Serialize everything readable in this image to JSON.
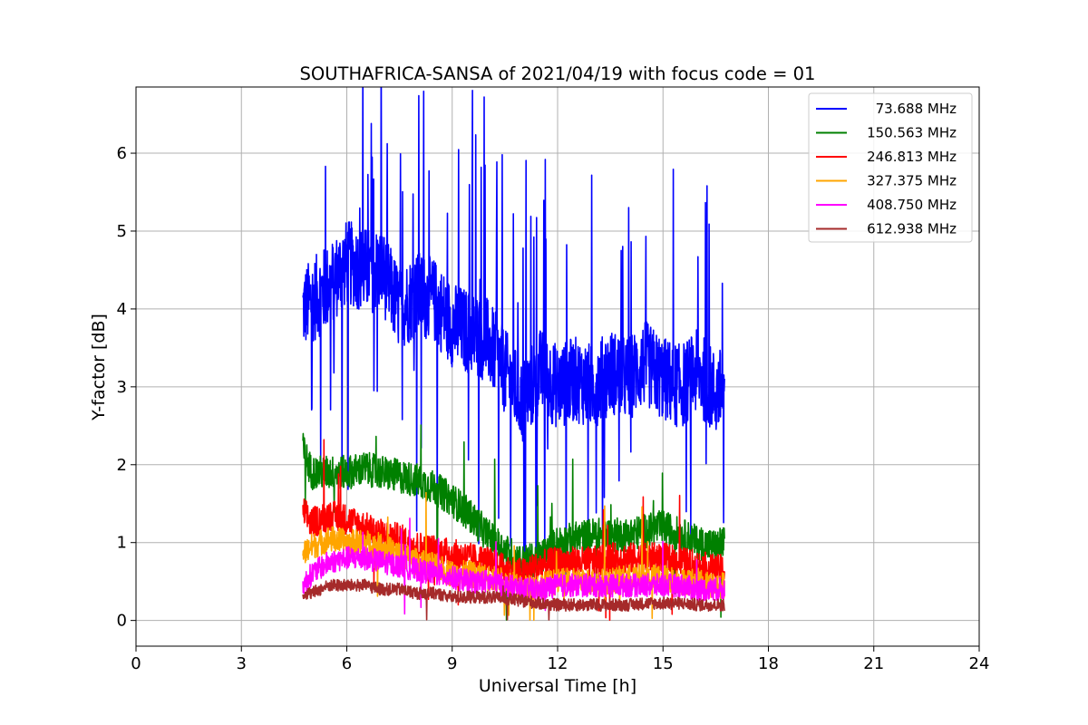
{
  "chart_data": {
    "type": "line",
    "title": "SOUTHAFRICA-SANSA of 2021/04/19 with focus code = 01",
    "xlabel": "Universal Time [h]",
    "ylabel": "Y-factor [dB]",
    "xlim": [
      0,
      24
    ],
    "ylim": [
      -0.33,
      6.85
    ],
    "xticks": [
      0,
      3,
      6,
      9,
      12,
      15,
      18,
      21,
      24
    ],
    "yticks": [
      0,
      1,
      2,
      3,
      4,
      5,
      6
    ],
    "grid": true,
    "legend_position": "top-right",
    "x_range_of_data": [
      4.75,
      16.75
    ],
    "series": [
      {
        "name": " 73.688 MHz",
        "color": "#0000ff",
        "x": [
          4.75,
          5,
          5.5,
          6,
          6.5,
          7,
          7.5,
          8,
          8.5,
          9,
          9.5,
          10,
          10.5,
          11,
          11.5,
          12,
          12.5,
          13,
          13.5,
          14,
          14.5,
          15,
          15.5,
          16,
          16.5,
          16.75
        ],
        "values": [
          4.0,
          4.1,
          4.3,
          4.6,
          4.5,
          4.5,
          4.0,
          4.2,
          4.1,
          3.8,
          3.7,
          3.6,
          3.2,
          2.8,
          3.2,
          3.0,
          3.1,
          3.0,
          3.2,
          3.1,
          3.3,
          3.1,
          3.0,
          3.2,
          2.9,
          3.0
        ]
      },
      {
        "name": "150.563 MHz",
        "color": "#008000",
        "x": [
          4.75,
          5,
          5.5,
          6,
          6.5,
          7,
          7.5,
          8,
          8.5,
          9,
          9.5,
          10,
          10.5,
          11,
          11.5,
          12,
          12.5,
          13,
          13.5,
          14,
          14.5,
          15,
          15.5,
          16,
          16.5,
          16.75
        ],
        "values": [
          2.2,
          1.9,
          1.9,
          1.9,
          1.95,
          1.9,
          1.85,
          1.8,
          1.7,
          1.55,
          1.35,
          1.1,
          0.9,
          0.75,
          0.8,
          1.0,
          1.05,
          1.1,
          1.1,
          1.1,
          1.15,
          1.2,
          1.1,
          1.0,
          0.95,
          1.0
        ]
      },
      {
        "name": "246.813 MHz",
        "color": "#ff0000",
        "x": [
          4.75,
          5,
          5.5,
          6,
          6.5,
          7,
          7.5,
          8,
          8.5,
          9,
          9.5,
          10,
          10.5,
          11,
          11.5,
          12,
          12.5,
          13,
          13.5,
          14,
          14.5,
          15,
          15.5,
          16,
          16.5,
          16.75
        ],
        "values": [
          1.4,
          1.25,
          1.35,
          1.3,
          1.2,
          1.1,
          1.05,
          0.95,
          0.9,
          0.85,
          0.8,
          0.75,
          0.65,
          0.6,
          0.7,
          0.75,
          0.75,
          0.75,
          0.8,
          0.8,
          0.8,
          0.8,
          0.75,
          0.7,
          0.65,
          0.65
        ]
      },
      {
        "name": "327.375 MHz",
        "color": "#ffa500",
        "x": [
          4.75,
          5,
          5.5,
          6,
          6.5,
          7,
          7.5,
          8,
          8.5,
          9,
          9.5,
          10,
          10.5,
          11,
          11.5,
          12,
          12.5,
          13,
          13.5,
          14,
          14.5,
          15,
          15.5,
          16,
          16.5,
          16.75
        ],
        "values": [
          0.85,
          0.95,
          1.05,
          1.0,
          1.0,
          0.95,
          0.85,
          0.75,
          0.7,
          0.6,
          0.6,
          0.55,
          0.5,
          0.4,
          0.45,
          0.5,
          0.5,
          0.5,
          0.5,
          0.55,
          0.55,
          0.55,
          0.5,
          0.5,
          0.45,
          0.45
        ]
      },
      {
        "name": "408.750 MHz",
        "color": "#ff00ff",
        "x": [
          4.75,
          5,
          5.5,
          6,
          6.5,
          7,
          7.5,
          8,
          8.5,
          9,
          9.5,
          10,
          10.5,
          11,
          11.5,
          12,
          12.5,
          13,
          13.5,
          14,
          14.5,
          15,
          15.5,
          16,
          16.5,
          16.75
        ],
        "values": [
          0.45,
          0.6,
          0.75,
          0.8,
          0.8,
          0.75,
          0.7,
          0.65,
          0.6,
          0.55,
          0.5,
          0.5,
          0.45,
          0.4,
          0.4,
          0.45,
          0.45,
          0.45,
          0.45,
          0.45,
          0.45,
          0.45,
          0.45,
          0.4,
          0.4,
          0.4
        ]
      },
      {
        "name": "612.938 MHz",
        "color": "#a52a2a",
        "x": [
          4.75,
          5,
          5.5,
          6,
          6.5,
          7,
          7.5,
          8,
          8.5,
          9,
          9.5,
          10,
          10.5,
          11,
          11.5,
          12,
          12.5,
          13,
          13.5,
          14,
          14.5,
          15,
          15.5,
          16,
          16.5,
          16.75
        ],
        "values": [
          0.35,
          0.35,
          0.45,
          0.45,
          0.45,
          0.4,
          0.4,
          0.35,
          0.35,
          0.3,
          0.3,
          0.3,
          0.28,
          0.25,
          0.22,
          0.2,
          0.2,
          0.2,
          0.2,
          0.2,
          0.22,
          0.22,
          0.22,
          0.2,
          0.2,
          0.2
        ]
      }
    ]
  }
}
